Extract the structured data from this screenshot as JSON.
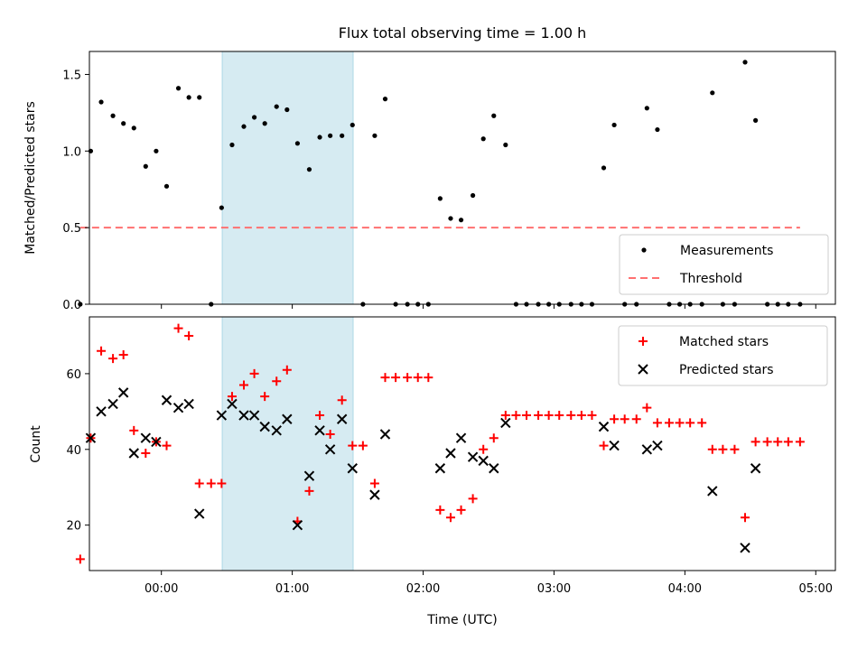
{
  "chart_data": [
    {
      "type": "scatter",
      "title": "Flux total observing time = 1.00 h",
      "xlabel": "",
      "ylabel": "Matched/Predicted stars",
      "xlim": [
        -0.55,
        5.15
      ],
      "ylim": [
        0,
        1.65
      ],
      "xticks": [
        0,
        1,
        2,
        3,
        4,
        5
      ],
      "yticks": [
        0.0,
        0.5,
        1.0,
        1.5
      ],
      "ytick_labels": [
        "0.0",
        "0.5",
        "1.0",
        "1.5"
      ],
      "shaded_region": {
        "x0": 0.465,
        "x1": 1.465,
        "color": "#add8e6"
      },
      "threshold": {
        "name": "Threshold",
        "y": 0.5,
        "x0": -0.62,
        "x1": 4.88,
        "color": "#ff7070"
      },
      "legend": {
        "position": "lower right"
      },
      "series": [
        {
          "name": "Measurements",
          "color": "#000000",
          "x": [
            -0.62,
            -0.54,
            -0.46,
            -0.37,
            -0.29,
            -0.21,
            -0.12,
            -0.04,
            0.04,
            0.13,
            0.21,
            0.29,
            0.38,
            0.46,
            0.54,
            0.63,
            0.71,
            0.79,
            0.88,
            0.96,
            1.04,
            1.13,
            1.21,
            1.29,
            1.38,
            1.46,
            1.54,
            1.63,
            1.71,
            1.79,
            1.88,
            1.96,
            2.04,
            2.13,
            2.21,
            2.29,
            2.38,
            2.46,
            2.54,
            2.63,
            2.71,
            2.79,
            2.88,
            2.96,
            3.04,
            3.13,
            3.21,
            3.29,
            3.38,
            3.46,
            3.54,
            3.63,
            3.71,
            3.79,
            3.88,
            3.96,
            4.04,
            4.13,
            4.21,
            4.29,
            4.38,
            4.46,
            4.54,
            4.63,
            4.71,
            4.79,
            4.88
          ],
          "y": [
            0.0,
            1.0,
            1.32,
            1.23,
            1.18,
            1.15,
            0.9,
            1.0,
            0.77,
            1.41,
            1.35,
            1.35,
            0.0,
            0.63,
            1.04,
            1.16,
            1.22,
            1.18,
            1.29,
            1.27,
            1.05,
            0.88,
            1.09,
            1.1,
            1.1,
            1.17,
            0.0,
            1.1,
            1.34,
            0.0,
            0.0,
            0.0,
            0.0,
            0.69,
            0.56,
            0.55,
            0.71,
            1.08,
            1.23,
            1.04,
            0.0,
            0.0,
            0.0,
            0.0,
            0.0,
            0.0,
            0.0,
            0.0,
            0.89,
            1.17,
            0.0,
            0.0,
            1.28,
            1.14,
            0.0,
            0.0,
            0.0,
            0.0,
            1.38,
            0.0,
            0.0,
            1.58,
            1.2,
            0.0,
            0.0,
            0.0,
            0.0
          ]
        }
      ]
    },
    {
      "type": "scatter",
      "title": "",
      "xlabel": "Time (UTC)",
      "ylabel": "Count",
      "xlim": [
        -0.55,
        5.15
      ],
      "ylim": [
        8,
        75
      ],
      "xticks": [
        0,
        1,
        2,
        3,
        4,
        5
      ],
      "xtick_labels": [
        "00:00",
        "01:00",
        "02:00",
        "03:00",
        "04:00",
        "05:00"
      ],
      "yticks": [
        20,
        40,
        60
      ],
      "ytick_labels": [
        "20",
        "40",
        "60"
      ],
      "shaded_region": {
        "x0": 0.465,
        "x1": 1.465,
        "color": "#add8e6"
      },
      "legend": {
        "position": "upper right"
      },
      "series": [
        {
          "name": "Matched stars",
          "color": "#ff0000",
          "marker": "+",
          "x": [
            -0.62,
            -0.54,
            -0.46,
            -0.37,
            -0.29,
            -0.21,
            -0.12,
            -0.04,
            0.04,
            0.13,
            0.21,
            0.29,
            0.38,
            0.46,
            0.54,
            0.63,
            0.71,
            0.79,
            0.88,
            0.96,
            1.04,
            1.13,
            1.21,
            1.29,
            1.38,
            1.46,
            1.54,
            1.63,
            1.71,
            1.79,
            1.88,
            1.96,
            2.04,
            2.13,
            2.21,
            2.29,
            2.38,
            2.46,
            2.54,
            2.63,
            2.71,
            2.79,
            2.88,
            2.96,
            3.04,
            3.13,
            3.21,
            3.29,
            3.38,
            3.46,
            3.54,
            3.63,
            3.71,
            3.79,
            3.88,
            3.96,
            4.04,
            4.13,
            4.21,
            4.29,
            4.38,
            4.46,
            4.54,
            4.63,
            4.71,
            4.79,
            4.88
          ],
          "y": [
            11,
            43,
            66,
            64,
            65,
            45,
            39,
            42,
            41,
            72,
            70,
            31,
            31,
            31,
            54,
            57,
            60,
            54,
            58,
            61,
            21,
            29,
            49,
            44,
            53,
            41,
            41,
            31,
            59,
            59,
            59,
            59,
            59,
            24,
            22,
            24,
            27,
            40,
            43,
            49,
            49,
            49,
            49,
            49,
            49,
            49,
            49,
            49,
            41,
            48,
            48,
            48,
            51,
            47,
            47,
            47,
            47,
            47,
            40,
            40,
            40,
            22,
            42,
            42,
            42,
            42,
            42
          ]
        },
        {
          "name": "Predicted stars",
          "color": "#000000",
          "marker": "x",
          "x": [
            -0.54,
            -0.46,
            -0.37,
            -0.29,
            -0.21,
            -0.12,
            -0.04,
            0.04,
            0.13,
            0.21,
            0.29,
            0.46,
            0.54,
            0.63,
            0.71,
            0.79,
            0.88,
            0.96,
            1.04,
            1.13,
            1.21,
            1.29,
            1.38,
            1.46,
            1.63,
            1.71,
            2.13,
            2.21,
            2.29,
            2.38,
            2.46,
            2.54,
            2.63,
            3.38,
            3.46,
            3.71,
            3.79,
            4.21,
            4.46,
            4.54
          ],
          "y": [
            43,
            50,
            52,
            55,
            39,
            43,
            42,
            53,
            51,
            52,
            23,
            49,
            52,
            49,
            49,
            46,
            45,
            48,
            20,
            33,
            45,
            40,
            48,
            35,
            28,
            44,
            35,
            39,
            43,
            38,
            37,
            35,
            47,
            46,
            41,
            40,
            41,
            29,
            14,
            35
          ]
        }
      ]
    }
  ]
}
